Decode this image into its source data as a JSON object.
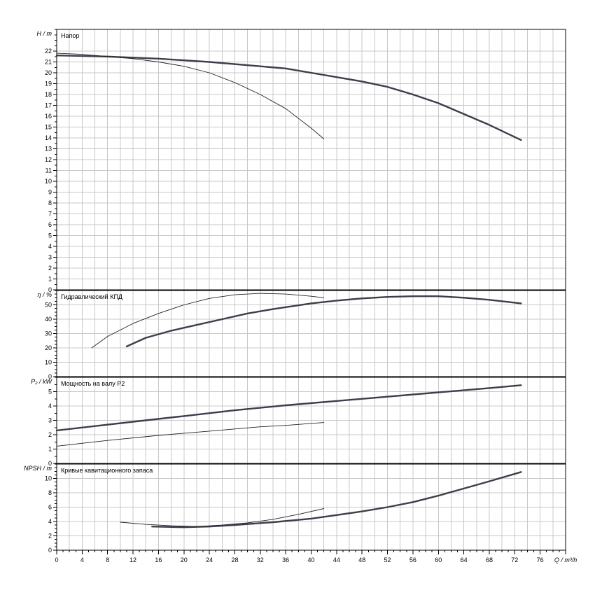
{
  "chart_data": {
    "type": "line",
    "x_axis": {
      "label": "Q / m³/h",
      "min": 0,
      "max": 80,
      "tick_step": 4,
      "ticks": [
        0,
        4,
        8,
        12,
        16,
        20,
        24,
        28,
        32,
        36,
        40,
        44,
        48,
        52,
        56,
        60,
        64,
        68,
        72,
        76
      ]
    },
    "panels": [
      {
        "id": "head",
        "title": "Напор",
        "ylabel": "H / m",
        "ylim": [
          0,
          24
        ],
        "y_ticks": [
          0,
          1,
          2,
          3,
          4,
          5,
          6,
          7,
          8,
          9,
          10,
          11,
          12,
          13,
          14,
          15,
          16,
          17,
          18,
          19,
          20,
          21,
          22
        ],
        "grid": true,
        "series": [
          {
            "thick": true,
            "x": [
              0,
              8,
              16,
              24,
              32,
              36,
              40,
              48,
              52,
              56,
              60,
              64,
              68,
              73
            ],
            "y": [
              21.6,
              21.5,
              21.3,
              21.0,
              20.6,
              20.4,
              20.0,
              19.2,
              18.7,
              18.0,
              17.2,
              16.2,
              15.2,
              13.8
            ]
          },
          {
            "thick": false,
            "x": [
              0,
              4,
              8,
              12,
              16,
              20,
              24,
              28,
              32,
              36,
              40,
              42
            ],
            "y": [
              21.8,
              21.7,
              21.5,
              21.3,
              21.0,
              20.6,
              20.0,
              19.1,
              18.0,
              16.7,
              14.9,
              13.9
            ]
          }
        ]
      },
      {
        "id": "efficiency",
        "title": "Гидравлический КПД",
        "ylabel": "η / %",
        "ylim": [
          0,
          60
        ],
        "y_ticks": [
          0,
          10,
          20,
          30,
          40,
          50
        ],
        "grid": true,
        "series": [
          {
            "thick": true,
            "x": [
              11,
              14,
              18,
              22,
              26,
              30,
              34,
              40,
              44,
              48,
              52,
              56,
              60,
              64,
              68,
              73
            ],
            "y": [
              21,
              27,
              32,
              36,
              40,
              44,
              47,
              51,
              53,
              54.5,
              55.5,
              56,
              56,
              55,
              53.5,
              51
            ]
          },
          {
            "thick": false,
            "x": [
              5.5,
              8,
              12,
              16,
              20,
              24,
              28,
              32,
              36,
              40,
              42
            ],
            "y": [
              20,
              28,
              37,
              44,
              50,
              54.5,
              57,
              58,
              57.5,
              56,
              55
            ]
          }
        ]
      },
      {
        "id": "power",
        "title": "Мощность на валу P2",
        "ylabel": "P₂ / kW",
        "ylim": [
          0,
          6
        ],
        "y_ticks": [
          0,
          1,
          2,
          3,
          4,
          5
        ],
        "grid": true,
        "series": [
          {
            "thick": true,
            "x": [
              0,
              12,
              20,
              28,
              36,
              44,
              52,
              60,
              68,
              73
            ],
            "y": [
              2.3,
              2.9,
              3.3,
              3.7,
              4.05,
              4.35,
              4.65,
              4.95,
              5.25,
              5.45
            ]
          },
          {
            "thick": false,
            "x": [
              0,
              8,
              16,
              24,
              32,
              36,
              42
            ],
            "y": [
              1.2,
              1.6,
              1.95,
              2.25,
              2.55,
              2.65,
              2.85
            ]
          }
        ]
      },
      {
        "id": "npsh",
        "title": "Кривые кавитационного запаса",
        "ylabel": "NPSH / m",
        "ylim": [
          0,
          12
        ],
        "y_ticks": [
          0,
          2,
          4,
          6,
          8,
          10
        ],
        "grid": true,
        "series": [
          {
            "thick": true,
            "x": [
              15,
              20,
              24,
              28,
              34,
              40,
              44,
              48,
              52,
              56,
              60,
              64,
              68,
              73
            ],
            "y": [
              3.3,
              3.2,
              3.3,
              3.5,
              3.9,
              4.4,
              4.9,
              5.4,
              6.0,
              6.7,
              7.6,
              8.6,
              9.6,
              10.9
            ]
          },
          {
            "thick": false,
            "x": [
              10,
              14,
              18,
              22,
              26,
              30,
              34,
              38,
              42
            ],
            "y": [
              3.9,
              3.6,
              3.4,
              3.3,
              3.5,
              3.8,
              4.3,
              5.0,
              5.8
            ]
          }
        ]
      }
    ]
  }
}
